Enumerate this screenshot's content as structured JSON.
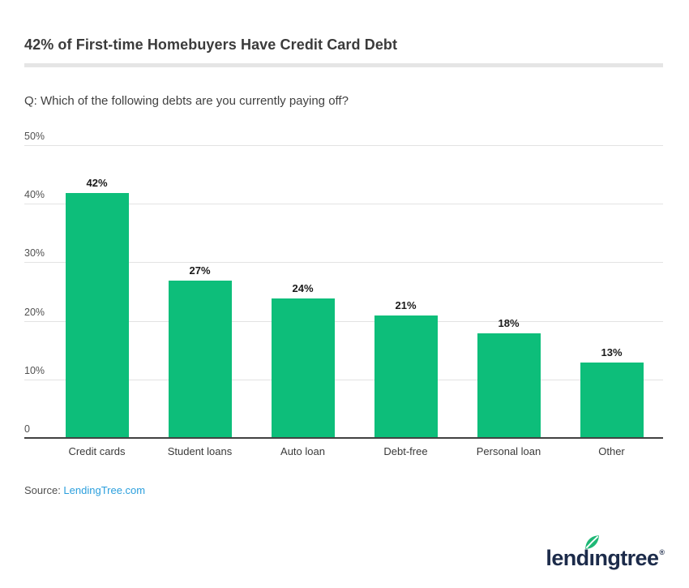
{
  "header": {
    "title": "42% of First-time Homebuyers Have Credit Card Debt"
  },
  "question": {
    "text": "Q: Which of the following debts are you currently paying off?"
  },
  "chart_data": {
    "type": "bar",
    "title": "42% of First-time Homebuyers Have Credit Card Debt",
    "subtitle": "Q: Which of the following debts are you currently paying off?",
    "categories": [
      "Credit cards",
      "Student loans",
      "Auto loan",
      "Debt-free",
      "Personal loan",
      "Other"
    ],
    "values": [
      42,
      27,
      24,
      21,
      18,
      13
    ],
    "value_labels": [
      "42%",
      "27%",
      "24%",
      "21%",
      "18%",
      "13%"
    ],
    "xlabel": "",
    "ylabel": "",
    "ylim": [
      0,
      50
    ],
    "ytick_values": [
      0,
      10,
      20,
      30,
      40,
      50
    ],
    "ytick_labels": [
      "0",
      "10%",
      "20%",
      "30%",
      "40%",
      "50%"
    ],
    "grid": true,
    "legend": false,
    "bar_color": "#0dbe7a",
    "value_label_color": "#1a1a1a",
    "axis_line_color": "#424242",
    "gridline_color": "#e3e3e3"
  },
  "source": {
    "prefix": "Source: ",
    "link_text": "LendingTree.com",
    "link_color": "#2b9fdd"
  },
  "logo": {
    "wordmark_pre": "lend",
    "wordmark_i": "ı",
    "wordmark_post": "ngtree",
    "registered": "®",
    "navy": "#1c2b4a",
    "leaf_green": "#1eb876",
    "leaf_icon": "leaf-icon"
  }
}
